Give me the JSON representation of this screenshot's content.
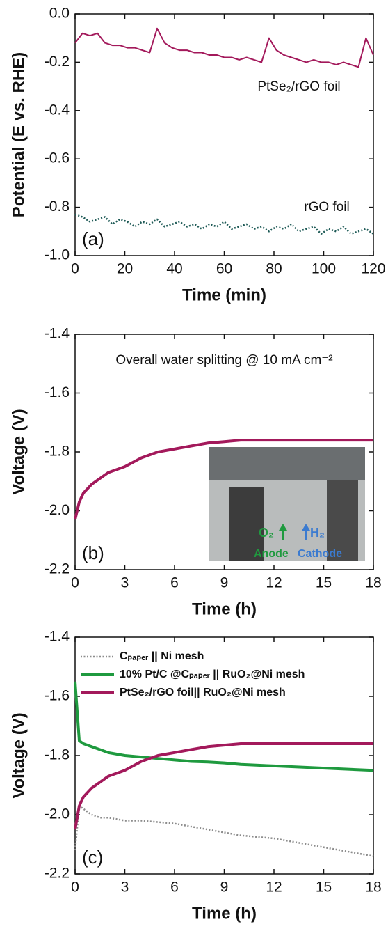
{
  "chart_data": [
    {
      "type": "line",
      "panel_label": "(a)",
      "xlabel": "Time (min)",
      "ylabel": "Potential (E vs. RHE)",
      "x": [
        0,
        3,
        6,
        9,
        12,
        15,
        18,
        21,
        24,
        27,
        30,
        33,
        36,
        39,
        42,
        45,
        48,
        51,
        54,
        57,
        60,
        63,
        66,
        69,
        72,
        75,
        78,
        81,
        84,
        87,
        90,
        93,
        96,
        99,
        102,
        105,
        108,
        111,
        114,
        117,
        120
      ],
      "series": [
        {
          "name": "PtSe₂/rGO foil",
          "color": "#a3195b",
          "line_style": "solid",
          "values": [
            -0.12,
            -0.08,
            -0.09,
            -0.08,
            -0.12,
            -0.13,
            -0.13,
            -0.14,
            -0.14,
            -0.15,
            -0.16,
            -0.06,
            -0.12,
            -0.14,
            -0.15,
            -0.15,
            -0.16,
            -0.16,
            -0.17,
            -0.17,
            -0.18,
            -0.18,
            -0.19,
            -0.18,
            -0.19,
            -0.2,
            -0.1,
            -0.15,
            -0.17,
            -0.18,
            -0.19,
            -0.2,
            -0.19,
            -0.2,
            -0.2,
            -0.21,
            -0.2,
            -0.21,
            -0.22,
            -0.1,
            -0.17
          ]
        },
        {
          "name": "rGO foil",
          "color": "#1f5b57",
          "line_style": "dotted",
          "values": [
            -0.83,
            -0.84,
            -0.86,
            -0.85,
            -0.84,
            -0.87,
            -0.85,
            -0.86,
            -0.88,
            -0.86,
            -0.87,
            -0.85,
            -0.88,
            -0.87,
            -0.86,
            -0.88,
            -0.87,
            -0.89,
            -0.87,
            -0.88,
            -0.86,
            -0.89,
            -0.88,
            -0.87,
            -0.89,
            -0.88,
            -0.9,
            -0.88,
            -0.89,
            -0.87,
            -0.9,
            -0.89,
            -0.88,
            -0.91,
            -0.89,
            -0.9,
            -0.88,
            -0.91,
            -0.9,
            -0.89,
            -0.91
          ]
        }
      ],
      "xlim": [
        0,
        120
      ],
      "xticks": [
        0,
        20,
        40,
        60,
        80,
        100,
        120
      ],
      "ylim": [
        -1,
        0
      ],
      "yticks": [
        {
          "value": -1,
          "label": "-1.0"
        },
        -0.8,
        -0.6,
        -0.4,
        -0.2,
        {
          "value": 0,
          "label": "0.0"
        }
      ]
    },
    {
      "type": "line",
      "panel_label": "(b)",
      "xlabel": "Time (h)",
      "ylabel": "Voltage (V)",
      "annotation": "Overall water splitting @ 10 mA cm⁻²",
      "inset_labels": [
        "O₂",
        "H₂",
        "Anode",
        "Cathode"
      ],
      "x": [
        0,
        0.25,
        0.5,
        1,
        1.5,
        2,
        3,
        4,
        5,
        6,
        7,
        8,
        9,
        10,
        12,
        14,
        16,
        18
      ],
      "series": [
        {
          "name": "PtSe₂/rGO foil|| RuO₂@Ni mesh",
          "color": "#a3195b",
          "line_style": "solid",
          "values": [
            -2.03,
            -1.97,
            -1.94,
            -1.91,
            -1.89,
            -1.87,
            -1.85,
            -1.82,
            -1.8,
            -1.79,
            -1.78,
            -1.77,
            -1.765,
            -1.76,
            -1.76,
            -1.76,
            -1.76,
            -1.76
          ]
        }
      ],
      "xlim": [
        0,
        18
      ],
      "xticks": [
        0,
        3,
        6,
        9,
        12,
        15,
        18
      ],
      "ylim": [
        -2.2,
        -1.4
      ],
      "yticks": [
        -2.2,
        {
          "value": -2,
          "label": "-2.0"
        },
        -1.8,
        -1.6,
        -1.4
      ]
    },
    {
      "type": "line",
      "panel_label": "(c)",
      "xlabel": "Time (h)",
      "ylabel": "Voltage (V)",
      "legend": "upper left",
      "x": [
        0,
        0.25,
        0.5,
        1,
        1.5,
        2,
        3,
        4,
        5,
        6,
        7,
        8,
        9,
        10,
        12,
        14,
        16,
        18
      ],
      "series": [
        {
          "name": "Cₚₐₚₑᵣ || Ni mesh",
          "color": "#8c8c8c",
          "line_style": "dotted",
          "values": [
            -2.12,
            -1.97,
            -1.98,
            -2.0,
            -2.01,
            -2.01,
            -2.02,
            -2.02,
            -2.025,
            -2.03,
            -2.04,
            -2.05,
            -2.06,
            -2.07,
            -2.08,
            -2.1,
            -2.12,
            -2.14
          ]
        },
        {
          "name": "10% Pt/C @Cₚₐₚₑᵣ || RuO₂@Ni mesh",
          "color": "#1f9a3f",
          "line_style": "solid",
          "values": [
            -1.55,
            -1.75,
            -1.76,
            -1.77,
            -1.78,
            -1.79,
            -1.8,
            -1.805,
            -1.81,
            -1.815,
            -1.82,
            -1.822,
            -1.825,
            -1.83,
            -1.835,
            -1.84,
            -1.845,
            -1.85
          ]
        },
        {
          "name": "PtSe₂/rGO foil|| RuO₂@Ni mesh",
          "color": "#a3195b",
          "line_style": "solid",
          "values": [
            -2.05,
            -1.97,
            -1.94,
            -1.91,
            -1.89,
            -1.87,
            -1.85,
            -1.82,
            -1.8,
            -1.79,
            -1.78,
            -1.77,
            -1.765,
            -1.76,
            -1.76,
            -1.76,
            -1.76,
            -1.76
          ]
        }
      ],
      "xlim": [
        0,
        18
      ],
      "xticks": [
        0,
        3,
        6,
        9,
        12,
        15,
        18
      ],
      "ylim": [
        -2.2,
        -1.4
      ],
      "yticks": [
        -2.2,
        {
          "value": -2,
          "label": "-2.0"
        },
        -1.8,
        -1.6,
        -1.4
      ]
    }
  ]
}
